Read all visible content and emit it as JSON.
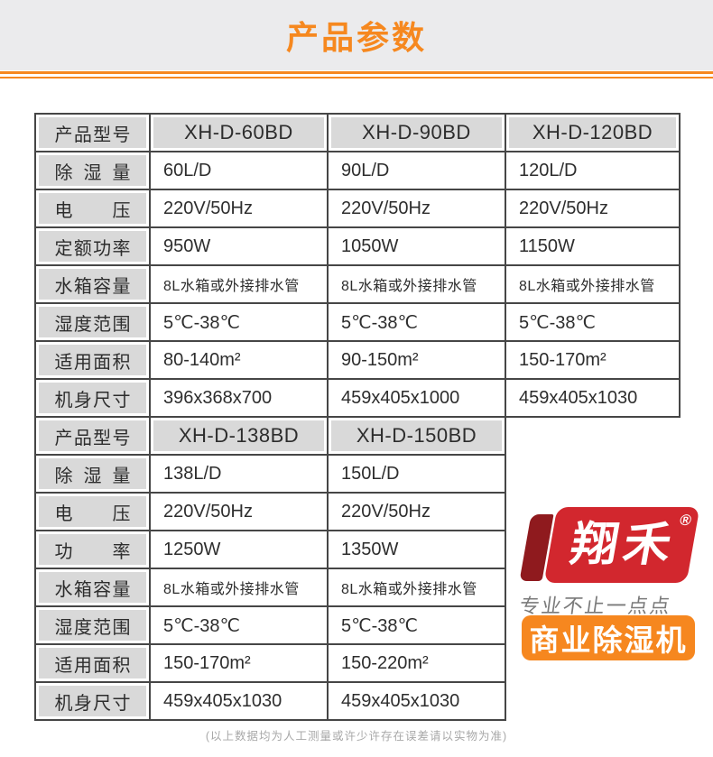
{
  "page": {
    "title": "产品参数",
    "footer_note": "(以上数据均为人工测量或许少许存在误差请以实物为准)"
  },
  "colors": {
    "accent_orange": "#f6881f",
    "banner_bg": "#ebebed",
    "table_border": "#464646",
    "gray_cell_bg": "#d9d9d9",
    "logo_red": "#d2272e",
    "logo_dark_red": "#8f1a1e",
    "badge_orange": "#f6871f",
    "tagline_gray": "#7a7a7a",
    "footer_gray": "#a8a8a8"
  },
  "table": {
    "sections": [
      {
        "header_label": "产品型号",
        "models": [
          "XH-D-60BD",
          "XH-D-90BD",
          "XH-D-120BD"
        ],
        "rows": [
          {
            "label": "除湿量",
            "values": [
              "60L/D",
              "90L/D",
              "120L/D"
            ]
          },
          {
            "label": "电压",
            "values": [
              "220V/50Hz",
              "220V/50Hz",
              "220V/50Hz"
            ]
          },
          {
            "label": "定额功率",
            "values": [
              "950W",
              "1050W",
              "1150W"
            ]
          },
          {
            "label": "水箱容量",
            "small": true,
            "values": [
              "8L水箱或外接排水管",
              "8L水箱或外接排水管",
              "8L水箱或外接排水管"
            ]
          },
          {
            "label": "湿度范围",
            "values": [
              "5℃-38℃",
              "5℃-38℃",
              "5℃-38℃"
            ]
          },
          {
            "label": "适用面积",
            "values": [
              "80-140m²",
              "90-150m²",
              "150-170m²"
            ]
          },
          {
            "label": "机身尺寸",
            "values": [
              "396x368x700",
              "459x405x1000",
              "459x405x1030"
            ]
          }
        ]
      },
      {
        "header_label": "产品型号",
        "models": [
          "XH-D-138BD",
          "XH-D-150BD"
        ],
        "rows": [
          {
            "label": "除湿量",
            "values": [
              "138L/D",
              "150L/D"
            ]
          },
          {
            "label": "电压",
            "values": [
              "220V/50Hz",
              "220V/50Hz"
            ]
          },
          {
            "label": "功率",
            "values": [
              "1250W",
              "1350W"
            ]
          },
          {
            "label": "水箱容量",
            "small": true,
            "values": [
              "8L水箱或外接排水管",
              "8L水箱或外接排水管"
            ]
          },
          {
            "label": "湿度范围",
            "values": [
              "5℃-38℃",
              "5℃-38℃"
            ]
          },
          {
            "label": "适用面积",
            "values": [
              "150-170m²",
              "150-220m²"
            ]
          },
          {
            "label": "机身尺寸",
            "values": [
              "459x405x1030",
              "459x405x1030"
            ]
          }
        ]
      }
    ]
  },
  "logo": {
    "brand": "翔禾",
    "registered_mark": "®",
    "tagline": "专业不止一点点",
    "badge": "商业除湿机"
  }
}
